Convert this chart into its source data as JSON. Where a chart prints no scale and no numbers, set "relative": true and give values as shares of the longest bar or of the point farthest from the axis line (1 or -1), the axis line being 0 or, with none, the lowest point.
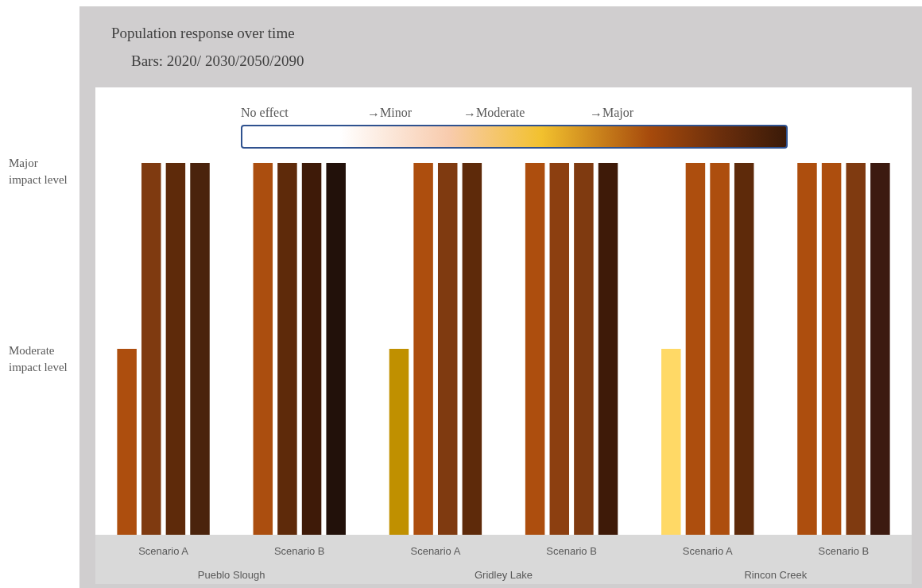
{
  "chart_data": {
    "type": "bar",
    "title": "Population response over time",
    "subtitle": "Bars: 2020/ 2030/2050/2090",
    "categories": [
      "Scenario A",
      "Scenario B",
      "Scenario A",
      "Scenario B",
      "Scenario A",
      "Scenario B"
    ],
    "series": [
      {
        "colors": [
          "#ad4e0e",
          "#ab4e0f",
          "#c09000",
          "#ad4e0e",
          "#ffd966",
          "#ad4e0e"
        ],
        "values": [
          0.5,
          1,
          0.5,
          1,
          0.5,
          1
        ]
      },
      {
        "colors": [
          "#7f3a10",
          "#5e2a0a",
          "#ad4e0e",
          "#8c3f10",
          "#ad4e0e",
          "#ad4e0e"
        ],
        "values": [
          1,
          1,
          1,
          1,
          1,
          1
        ]
      },
      {
        "colors": [
          "#5e2a0a",
          "#3e1a08",
          "#7f3a10",
          "#7f3a10",
          "#ad4e0e",
          "#7f3a10"
        ],
        "values": [
          1,
          1,
          1,
          1,
          1,
          1
        ]
      },
      {
        "colors": [
          "#4a230c",
          "#22110a",
          "#5e2a0a",
          "#3e1a08",
          "#5e2a0a",
          "#3c1a10"
        ],
        "values": [
          1,
          1,
          1,
          1,
          1,
          1
        ]
      }
    ],
    "relative": true,
    "annotations": [
      "Pueblo Slough",
      "Gridley Lake",
      "Rincon Creek",
      "Major impact level",
      "Moderate impact level",
      "No effect",
      "→Minor",
      "→Moderate",
      "→Major"
    ],
    "grid": false
  }
}
